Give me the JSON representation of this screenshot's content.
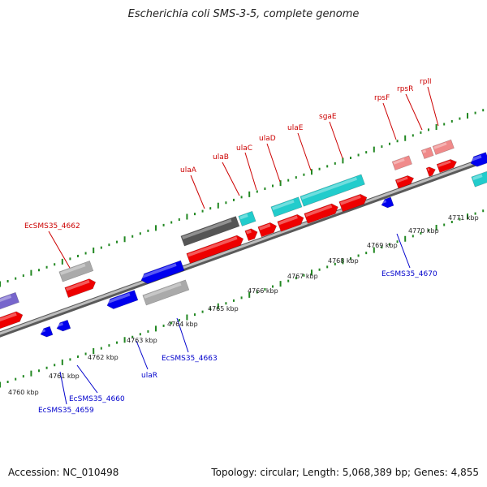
{
  "title": "Escherichia coli SMS-3-5, complete genome",
  "footer": {
    "accession": "Accession: NC_010498",
    "topology": "Topology: circular; Length: 5,068,389 bp; Genes: 4,855"
  },
  "colors": {
    "backbone": "#8a8a8a",
    "gene_forward": "#ee0000",
    "gene_reverse": "#0000ee",
    "rna": "#f08a8a",
    "cyan": "#22cccc",
    "grey": "#aaaaaa",
    "dark": "#555555",
    "purple": "#7766cc",
    "tick": "#228822",
    "label_red": "#cc0000",
    "label_blue": "#0000cc"
  },
  "scale_labels": [
    "4760 kbp",
    "4761 kbp",
    "4762 kbp",
    "4763 kbp",
    "4764 kbp",
    "4765 kbp",
    "4766 kbp",
    "4767 kbp",
    "4768 kbp",
    "4769 kbp",
    "4770 kbp",
    "4771 kbp"
  ],
  "gene_labels": [
    {
      "text": "EcSMS35_4662",
      "color": "red"
    },
    {
      "text": "ulaA",
      "color": "red"
    },
    {
      "text": "ulaB",
      "color": "red"
    },
    {
      "text": "ulaC",
      "color": "red"
    },
    {
      "text": "ulaD",
      "color": "red"
    },
    {
      "text": "ulaE",
      "color": "red"
    },
    {
      "text": "sgaE",
      "color": "red"
    },
    {
      "text": "rpsF",
      "color": "red"
    },
    {
      "text": "rpsR",
      "color": "red"
    },
    {
      "text": "rplI",
      "color": "red"
    },
    {
      "text": "EcSMS35_4670",
      "color": "blue"
    },
    {
      "text": "EcSMS35_4663",
      "color": "blue"
    },
    {
      "text": "ulaR",
      "color": "blue"
    },
    {
      "text": "EcSMS35_4660",
      "color": "blue"
    },
    {
      "text": "EcSMS35_4659",
      "color": "blue"
    }
  ]
}
